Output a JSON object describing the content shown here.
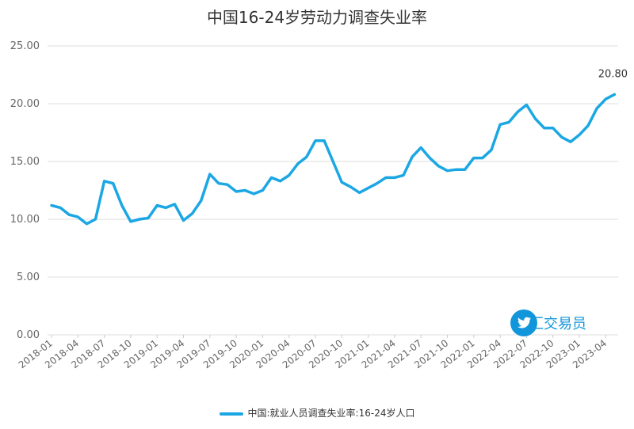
{
  "title": "中国16-24岁劳动力调查失业率",
  "legend": {
    "label": "中国:就业人员调查失业率:16-24岁人口"
  },
  "watermark": {
    "text": "外汇交易员",
    "icon": "twitter-bird-icon"
  },
  "colors": {
    "line": "#1ba7e3",
    "grid": "#dddddd",
    "watermark": "#1296db"
  },
  "chart_data": {
    "type": "line",
    "title": "中国16-24岁劳动力调查失业率",
    "y_ticks": [
      "0.00",
      "5.00",
      "10.00",
      "15.00",
      "20.00",
      "25.00"
    ],
    "ylim": [
      0,
      25
    ],
    "x_tick_labels": [
      "2018-01",
      "2018-04",
      "2018-07",
      "2018-10",
      "2019-01",
      "2019-04",
      "2019-07",
      "2019-10",
      "2020-01",
      "2020-04",
      "2020-07",
      "2020-10",
      "2021-01",
      "2021-04",
      "2021-07",
      "2021-10",
      "2022-01",
      "2022-04",
      "2022-07",
      "2022-10",
      "2023-01",
      "2023-04"
    ],
    "grid": true,
    "legend_position": "bottom",
    "end_label": "20.80",
    "series": [
      {
        "name": "中国:就业人员调查失业率:16-24岁人口",
        "x": [
          "2018-01",
          "2018-02",
          "2018-03",
          "2018-04",
          "2018-05",
          "2018-06",
          "2018-07",
          "2018-08",
          "2018-09",
          "2018-10",
          "2018-11",
          "2018-12",
          "2019-01",
          "2019-02",
          "2019-03",
          "2019-04",
          "2019-05",
          "2019-06",
          "2019-07",
          "2019-08",
          "2019-09",
          "2019-10",
          "2019-11",
          "2019-12",
          "2020-01",
          "2020-02",
          "2020-03",
          "2020-04",
          "2020-05",
          "2020-06",
          "2020-07",
          "2020-08",
          "2020-09",
          "2020-10",
          "2020-11",
          "2020-12",
          "2021-01",
          "2021-02",
          "2021-03",
          "2021-04",
          "2021-05",
          "2021-06",
          "2021-07",
          "2021-08",
          "2021-09",
          "2021-10",
          "2021-11",
          "2021-12",
          "2022-01",
          "2022-02",
          "2022-03",
          "2022-04",
          "2022-05",
          "2022-06",
          "2022-07",
          "2022-08",
          "2022-09",
          "2022-10",
          "2022-11",
          "2022-12",
          "2023-01",
          "2023-02",
          "2023-03",
          "2023-04",
          "2023-05"
        ],
        "values": [
          11.2,
          11.0,
          10.4,
          10.2,
          9.6,
          10.0,
          13.3,
          13.1,
          11.2,
          9.8,
          10.0,
          10.1,
          11.2,
          11.0,
          11.3,
          9.9,
          10.5,
          11.6,
          13.9,
          13.1,
          13.0,
          12.4,
          12.5,
          12.2,
          12.5,
          13.6,
          13.3,
          13.8,
          14.8,
          15.4,
          16.8,
          16.8,
          15.0,
          13.2,
          12.8,
          12.3,
          12.7,
          13.1,
          13.6,
          13.6,
          13.8,
          15.4,
          16.2,
          15.3,
          14.6,
          14.2,
          14.3,
          14.3,
          15.3,
          15.3,
          16.0,
          18.2,
          18.4,
          19.3,
          19.9,
          18.7,
          17.9,
          17.9,
          17.1,
          16.7,
          17.3,
          18.1,
          19.6,
          20.4,
          20.8
        ]
      }
    ]
  }
}
